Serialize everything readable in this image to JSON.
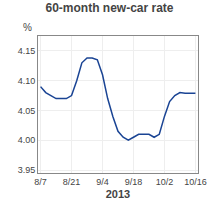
{
  "chart_data": {
    "type": "line",
    "title": "60-month new-car rate",
    "ylabel": "%",
    "xlabel": "2013",
    "x": [
      0,
      1,
      2,
      3,
      4,
      5,
      6,
      7,
      8,
      9,
      10,
      11,
      12,
      13,
      14,
      15,
      16,
      17,
      18,
      19,
      20,
      21,
      22,
      23,
      24,
      25,
      26,
      27,
      28,
      29,
      30
    ],
    "values": [
      4.09,
      4.08,
      4.075,
      4.07,
      4.07,
      4.07,
      4.075,
      4.1,
      4.13,
      4.138,
      4.138,
      4.135,
      4.11,
      4.07,
      4.04,
      4.015,
      4.005,
      4.0,
      4.005,
      4.01,
      4.01,
      4.01,
      4.005,
      4.01,
      4.04,
      4.065,
      4.075,
      4.08,
      4.079,
      4.079,
      4.079
    ],
    "color": "#1a4494",
    "xlim": [
      -0.5,
      30.5
    ],
    "xticks": [
      {
        "value": 0,
        "label": "8/7"
      },
      {
        "value": 6,
        "label": "8/21"
      },
      {
        "value": 12,
        "label": "9/4"
      },
      {
        "value": 18,
        "label": "9/18"
      },
      {
        "value": 24,
        "label": "10/2"
      },
      {
        "value": 30,
        "label": "10/16"
      }
    ],
    "ylim": [
      3.945,
      4.175
    ],
    "yticks": [
      3.95,
      {
        "value": 4,
        "label": "4.00"
      },
      4.05,
      {
        "value": 4.1,
        "label": "4.10"
      },
      4.15
    ],
    "grid": true
  }
}
